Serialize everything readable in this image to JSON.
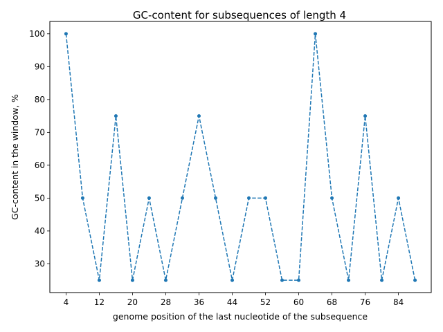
{
  "chart_data": {
    "type": "line",
    "title": "GC-content for subsequences of length 4",
    "xlabel": "genome position of the last nucleotide of the subsequence",
    "ylabel": "GC-content in the window, %",
    "x": [
      4,
      8,
      12,
      16,
      20,
      24,
      28,
      32,
      36,
      40,
      44,
      48,
      52,
      56,
      60,
      64,
      68,
      72,
      76,
      80,
      84,
      88
    ],
    "series": [
      {
        "values": [
          100,
          50,
          25,
          75,
          25,
          50,
          25,
          50,
          75,
          50,
          25,
          50,
          50,
          25,
          25,
          100,
          50,
          25,
          75,
          25,
          50,
          25
        ],
        "color": "#1f77b4",
        "line_style": "dashed",
        "marker": "circle"
      }
    ],
    "xticks": [
      4,
      12,
      20,
      28,
      36,
      44,
      52,
      60,
      68,
      76,
      84
    ],
    "yticks": [
      30,
      40,
      50,
      60,
      70,
      80,
      90,
      100
    ],
    "xlim": [
      0.1,
      91.9
    ],
    "ylim": [
      21.25,
      103.75
    ],
    "grid": false,
    "legend": "none"
  }
}
